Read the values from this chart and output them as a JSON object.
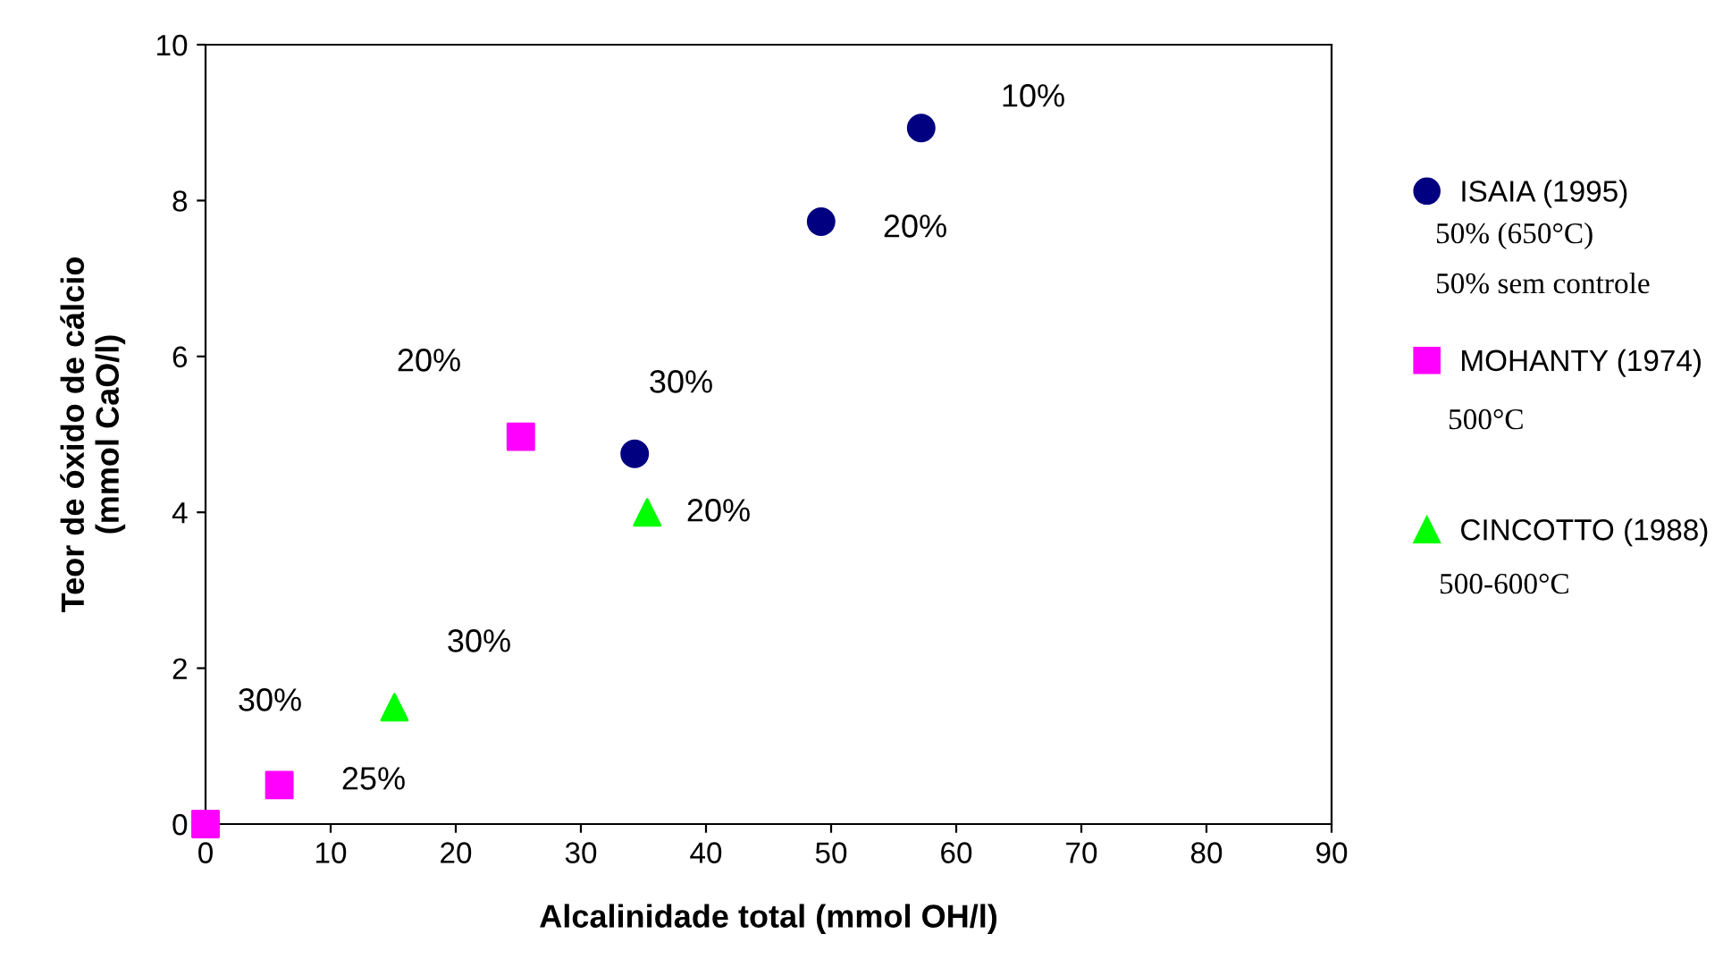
{
  "chart_data": {
    "type": "scatter",
    "xlabel": "Alcalinidade total (mmol OH/l)",
    "ylabel": "Teor de óxido de cálcio\n(mmol CaO/l)",
    "series": [
      {
        "name": "ISAIA (1995)",
        "color": "#000080",
        "marker": "circle",
        "x": [
          57.2,
          49.2,
          34.3
        ],
        "values": [
          8.93,
          7.73,
          4.75
        ]
      },
      {
        "name": "MOHANTY (1974)",
        "color": "#ff00ff",
        "marker": "square",
        "x": [
          0,
          5.9,
          25.2
        ],
        "values": [
          0,
          0.5,
          4.97
        ]
      },
      {
        "name": "CINCOTTO (1988)",
        "color": "#00ff00",
        "marker": "triangle",
        "x": [
          15.1,
          35.3
        ],
        "values": [
          1.5,
          4.0
        ]
      }
    ],
    "xlim": [
      0,
      90
    ],
    "xticks": [
      0,
      10,
      20,
      30,
      40,
      50,
      60,
      70,
      80,
      90
    ],
    "ylim": [
      0,
      10
    ],
    "yticks": [
      0,
      2,
      4,
      6,
      8,
      10
    ],
    "grid": false,
    "legend": "right",
    "annotations": [
      "10%",
      "20%",
      "20%",
      "30%",
      "20%",
      "30%",
      "30%",
      "25%",
      "50% (650°C)",
      "50% sem controle",
      "500°C",
      "500-600°C"
    ]
  }
}
